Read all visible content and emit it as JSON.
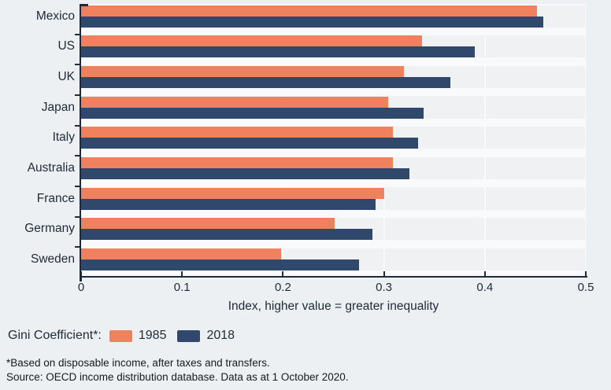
{
  "chart_data": {
    "type": "bar",
    "orientation": "horizontal",
    "categories": [
      "Mexico",
      "US",
      "UK",
      "Japan",
      "Italy",
      "Australia",
      "France",
      "Germany",
      "Sweden"
    ],
    "series": [
      {
        "name": "1985",
        "color": "#f0815e",
        "values": [
          0.452,
          0.338,
          0.32,
          0.304,
          0.309,
          0.309,
          0.3,
          0.251,
          0.198
        ]
      },
      {
        "name": "2018",
        "color": "#2f486b",
        "values": [
          0.458,
          0.39,
          0.366,
          0.339,
          0.334,
          0.325,
          0.292,
          0.289,
          0.275
        ]
      }
    ],
    "xlabel": "Index, higher value = greater inequality",
    "ylabel": "",
    "xlim": [
      0,
      0.5
    ],
    "xticks": [
      0,
      0.1,
      0.2,
      0.3,
      0.4,
      0.5
    ],
    "xtick_labels": [
      "0",
      "0.1",
      "0.2",
      "0.3",
      "0.4",
      "0.5"
    ],
    "grid": "vertical",
    "legend_position": "bottom-left"
  },
  "legend": {
    "title": "Gini Coefficient*:",
    "items": [
      {
        "label": "1985",
        "color": "#f0815e"
      },
      {
        "label": "2018",
        "color": "#2f486b"
      }
    ]
  },
  "footnotes": {
    "note": "*Based on disposable income, after taxes and transfers.",
    "source": "Source: OECD income distribution database. Data as at 1 October 2020."
  },
  "colors": {
    "background": "#edf0f2",
    "plot_background": "#eff1f3",
    "band": "#f8fafc",
    "gridline": "#fafbfd",
    "axis": "#1f2b3a",
    "series_1985": "#f0815e",
    "series_2018": "#2f486b"
  }
}
